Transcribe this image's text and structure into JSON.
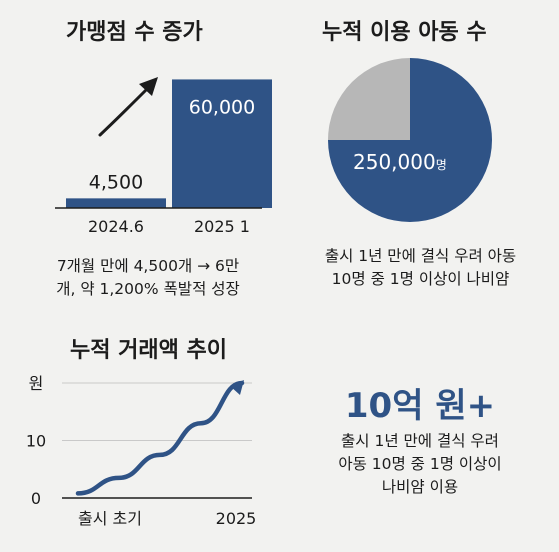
{
  "colors": {
    "navy": "#2f5386",
    "gray": "#b7b7b7",
    "text": "#1c1c1c",
    "bg": "#f2f2f0"
  },
  "panels": {
    "stores": {
      "title": "가맹점 수 증가",
      "caption_lines": [
        "7개월 만에 4,500개 → 6만",
        "개, 약 1,200% 폭발적 성장"
      ]
    },
    "children": {
      "title": "누적 이용 아동 수",
      "slice_label": "250,000",
      "slice_unit": "명",
      "caption_lines": [
        "출시 1년 만에 결식 우려 아동",
        "10명 중 1명 이상이 나비얌"
      ]
    },
    "transactions": {
      "title": "누적 거래액 추이"
    },
    "amount": {
      "headline": "10억 원+",
      "caption_lines": [
        "출시 1년 만에 결식 우려",
        "아동 10명 중 1명 이상이",
        "나비얌 이용"
      ]
    }
  },
  "chart_data": [
    {
      "type": "bar",
      "title": "가맹점 수 증가",
      "categories": [
        "2024.6",
        "2025 1"
      ],
      "values": [
        4500,
        60000
      ],
      "data_labels": [
        "4,500",
        "60,000"
      ],
      "ylim": [
        0,
        70000
      ],
      "trend_arrow": true
    },
    {
      "type": "pie",
      "title": "누적 이용 아동 수",
      "labels": [
        "250,000명",
        ""
      ],
      "values": [
        75,
        25
      ],
      "colors": [
        "#2f5386",
        "#b7b7b7"
      ]
    },
    {
      "type": "line",
      "title": "누적 거래액 추이",
      "x_tick_labels": [
        "출시 초기",
        "2025"
      ],
      "y_tick_labels": [
        "0",
        "10",
        "원"
      ],
      "x": [
        0,
        0.25,
        0.5,
        0.75,
        1
      ],
      "y": [
        0.8,
        3.5,
        7.5,
        13,
        20
      ],
      "ylim": [
        0,
        20
      ],
      "grid": "horizontal",
      "end_arrow": true
    }
  ]
}
